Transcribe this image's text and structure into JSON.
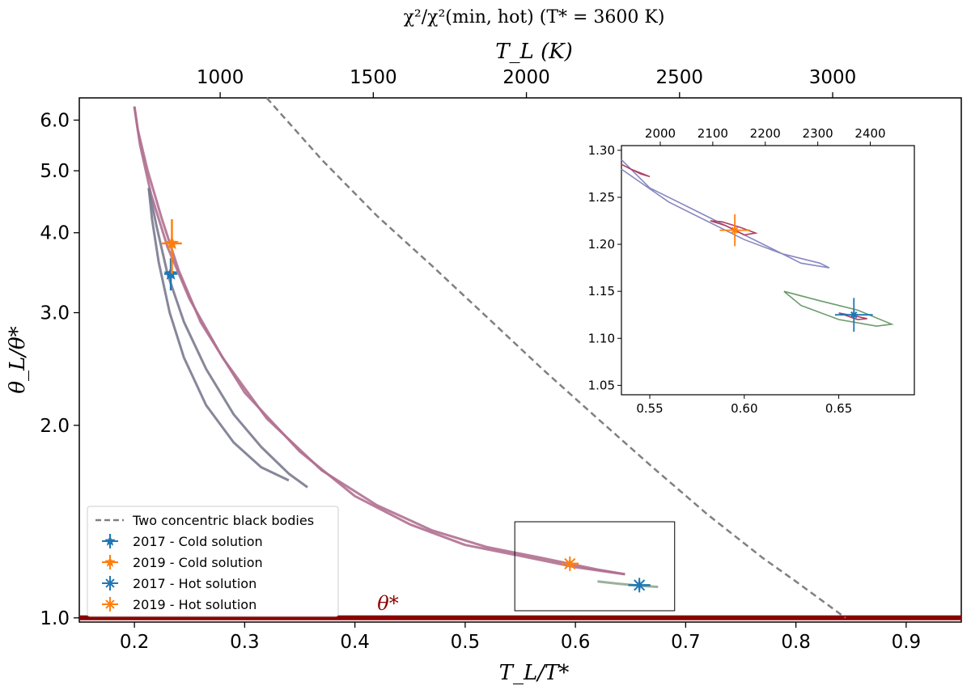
{
  "chart_data": {
    "type": "line",
    "title": "χ²/χ²(min, hot) (T* = 3600 K)",
    "xlabel": "T_L/T*",
    "ylabel": "θ_L/θ*",
    "top_xlabel": "T_L (K)",
    "xlim": [
      0.15,
      0.95
    ],
    "ylim": [
      0.985,
      6.5
    ],
    "yscale": "log",
    "x_ticks": [
      "0.2",
      "0.3",
      "0.4",
      "0.5",
      "0.6",
      "0.7",
      "0.8",
      "0.9"
    ],
    "x_tick_values": [
      0.2,
      0.3,
      0.4,
      0.5,
      0.6,
      0.7,
      0.8,
      0.9
    ],
    "y_ticks": [
      "1.0",
      "2.0",
      "3.0",
      "4.0",
      "5.0",
      "6.0"
    ],
    "y_tick_values": [
      1.0,
      2.0,
      3.0,
      4.0,
      5.0,
      6.0
    ],
    "top_ticks": [
      "1000",
      "1500",
      "2000",
      "2500",
      "3000"
    ],
    "top_tick_values": [
      1000,
      1500,
      2000,
      2500,
      3000
    ],
    "t_star": 3600,
    "theta_star_label": "θ*",
    "theta_star_value": 1.0,
    "theta_star_color": "#8b0000",
    "series": [
      {
        "name": "Two concentric black bodies",
        "style": "dashed",
        "color": "#808080",
        "x": [
          0.32,
          0.37,
          0.42,
          0.47,
          0.52,
          0.57,
          0.62,
          0.67,
          0.72,
          0.77,
          0.8,
          0.845
        ],
        "y": [
          6.5,
          5.2,
          4.25,
          3.55,
          2.95,
          2.45,
          2.05,
          1.72,
          1.45,
          1.24,
          1.14,
          1.0
        ]
      },
      {
        "name": "2017 - Cold solution",
        "marker": "star",
        "color": "#1f77b4",
        "x": [
          0.233
        ],
        "y": [
          3.45
        ],
        "xerr": 0.006,
        "yerr": [
          0.2,
          0.2
        ]
      },
      {
        "name": "2019 - Cold solution",
        "marker": "star",
        "color": "#ff7f0e",
        "x": [
          0.234
        ],
        "y": [
          3.85
        ],
        "xerr": 0.009,
        "yerr": [
          0.4,
          0.35
        ]
      },
      {
        "name": "2017 - Hot solution",
        "marker": "asterisk",
        "color": "#1f77b4",
        "x": [
          0.658
        ],
        "y": [
          1.125
        ],
        "xerr": 0.01,
        "yerr": [
          0.018,
          0.018
        ]
      },
      {
        "name": "2019 - Hot solution",
        "marker": "asterisk",
        "color": "#ff7f0e",
        "x": [
          0.595
        ],
        "y": [
          1.215
        ],
        "xerr": 0.008,
        "yerr": [
          0.017,
          0.017
        ]
      }
    ],
    "contours": [
      {
        "color": "#b07090",
        "x": [
          0.2,
          0.203,
          0.212,
          0.225,
          0.24,
          0.26,
          0.3,
          0.35,
          0.4,
          0.45,
          0.5,
          0.55,
          0.6,
          0.645
        ],
        "y": [
          6.3,
          5.8,
          5.0,
          4.2,
          3.5,
          2.9,
          2.25,
          1.82,
          1.55,
          1.4,
          1.3,
          1.25,
          1.2,
          1.17
        ]
      },
      {
        "color": "#b07090",
        "x": [
          0.2,
          0.205,
          0.215,
          0.23,
          0.25,
          0.28,
          0.32,
          0.37,
          0.42,
          0.47,
          0.52,
          0.57,
          0.62,
          0.645
        ],
        "y": [
          6.3,
          5.5,
          4.6,
          3.8,
          3.15,
          2.55,
          2.05,
          1.7,
          1.5,
          1.37,
          1.29,
          1.24,
          1.19,
          1.17
        ]
      },
      {
        "color": "#7a7a90",
        "x": [
          0.213,
          0.216,
          0.222,
          0.232,
          0.245,
          0.265,
          0.29,
          0.315,
          0.34
        ],
        "y": [
          4.7,
          4.2,
          3.6,
          3.0,
          2.55,
          2.15,
          1.88,
          1.72,
          1.64
        ]
      },
      {
        "color": "#7a7a90",
        "x": [
          0.213,
          0.22,
          0.23,
          0.245,
          0.265,
          0.29,
          0.315,
          0.34,
          0.357
        ],
        "y": [
          4.7,
          4.1,
          3.45,
          2.9,
          2.45,
          2.08,
          1.85,
          1.68,
          1.6
        ]
      },
      {
        "color": "#8fa88f",
        "x": [
          0.62,
          0.64,
          0.66,
          0.675
        ],
        "y": [
          1.14,
          1.13,
          1.122,
          1.118
        ]
      }
    ],
    "inset": {
      "xlim": [
        0.535,
        0.69
      ],
      "ylim": [
        1.04,
        1.305
      ],
      "x_ticks": [
        "0.55",
        "0.60",
        "0.65"
      ],
      "x_tick_values": [
        0.55,
        0.6,
        0.65
      ],
      "y_ticks": [
        "1.05",
        "1.10",
        "1.15",
        "1.20",
        "1.25",
        "1.30"
      ],
      "y_tick_values": [
        1.05,
        1.1,
        1.15,
        1.2,
        1.25,
        1.3
      ],
      "top_ticks": [
        "2000",
        "2100",
        "2200",
        "2300",
        "2400"
      ],
      "top_tick_values": [
        2000,
        2100,
        2200,
        2300,
        2400
      ]
    },
    "legend": "lower-left",
    "grid": false
  }
}
